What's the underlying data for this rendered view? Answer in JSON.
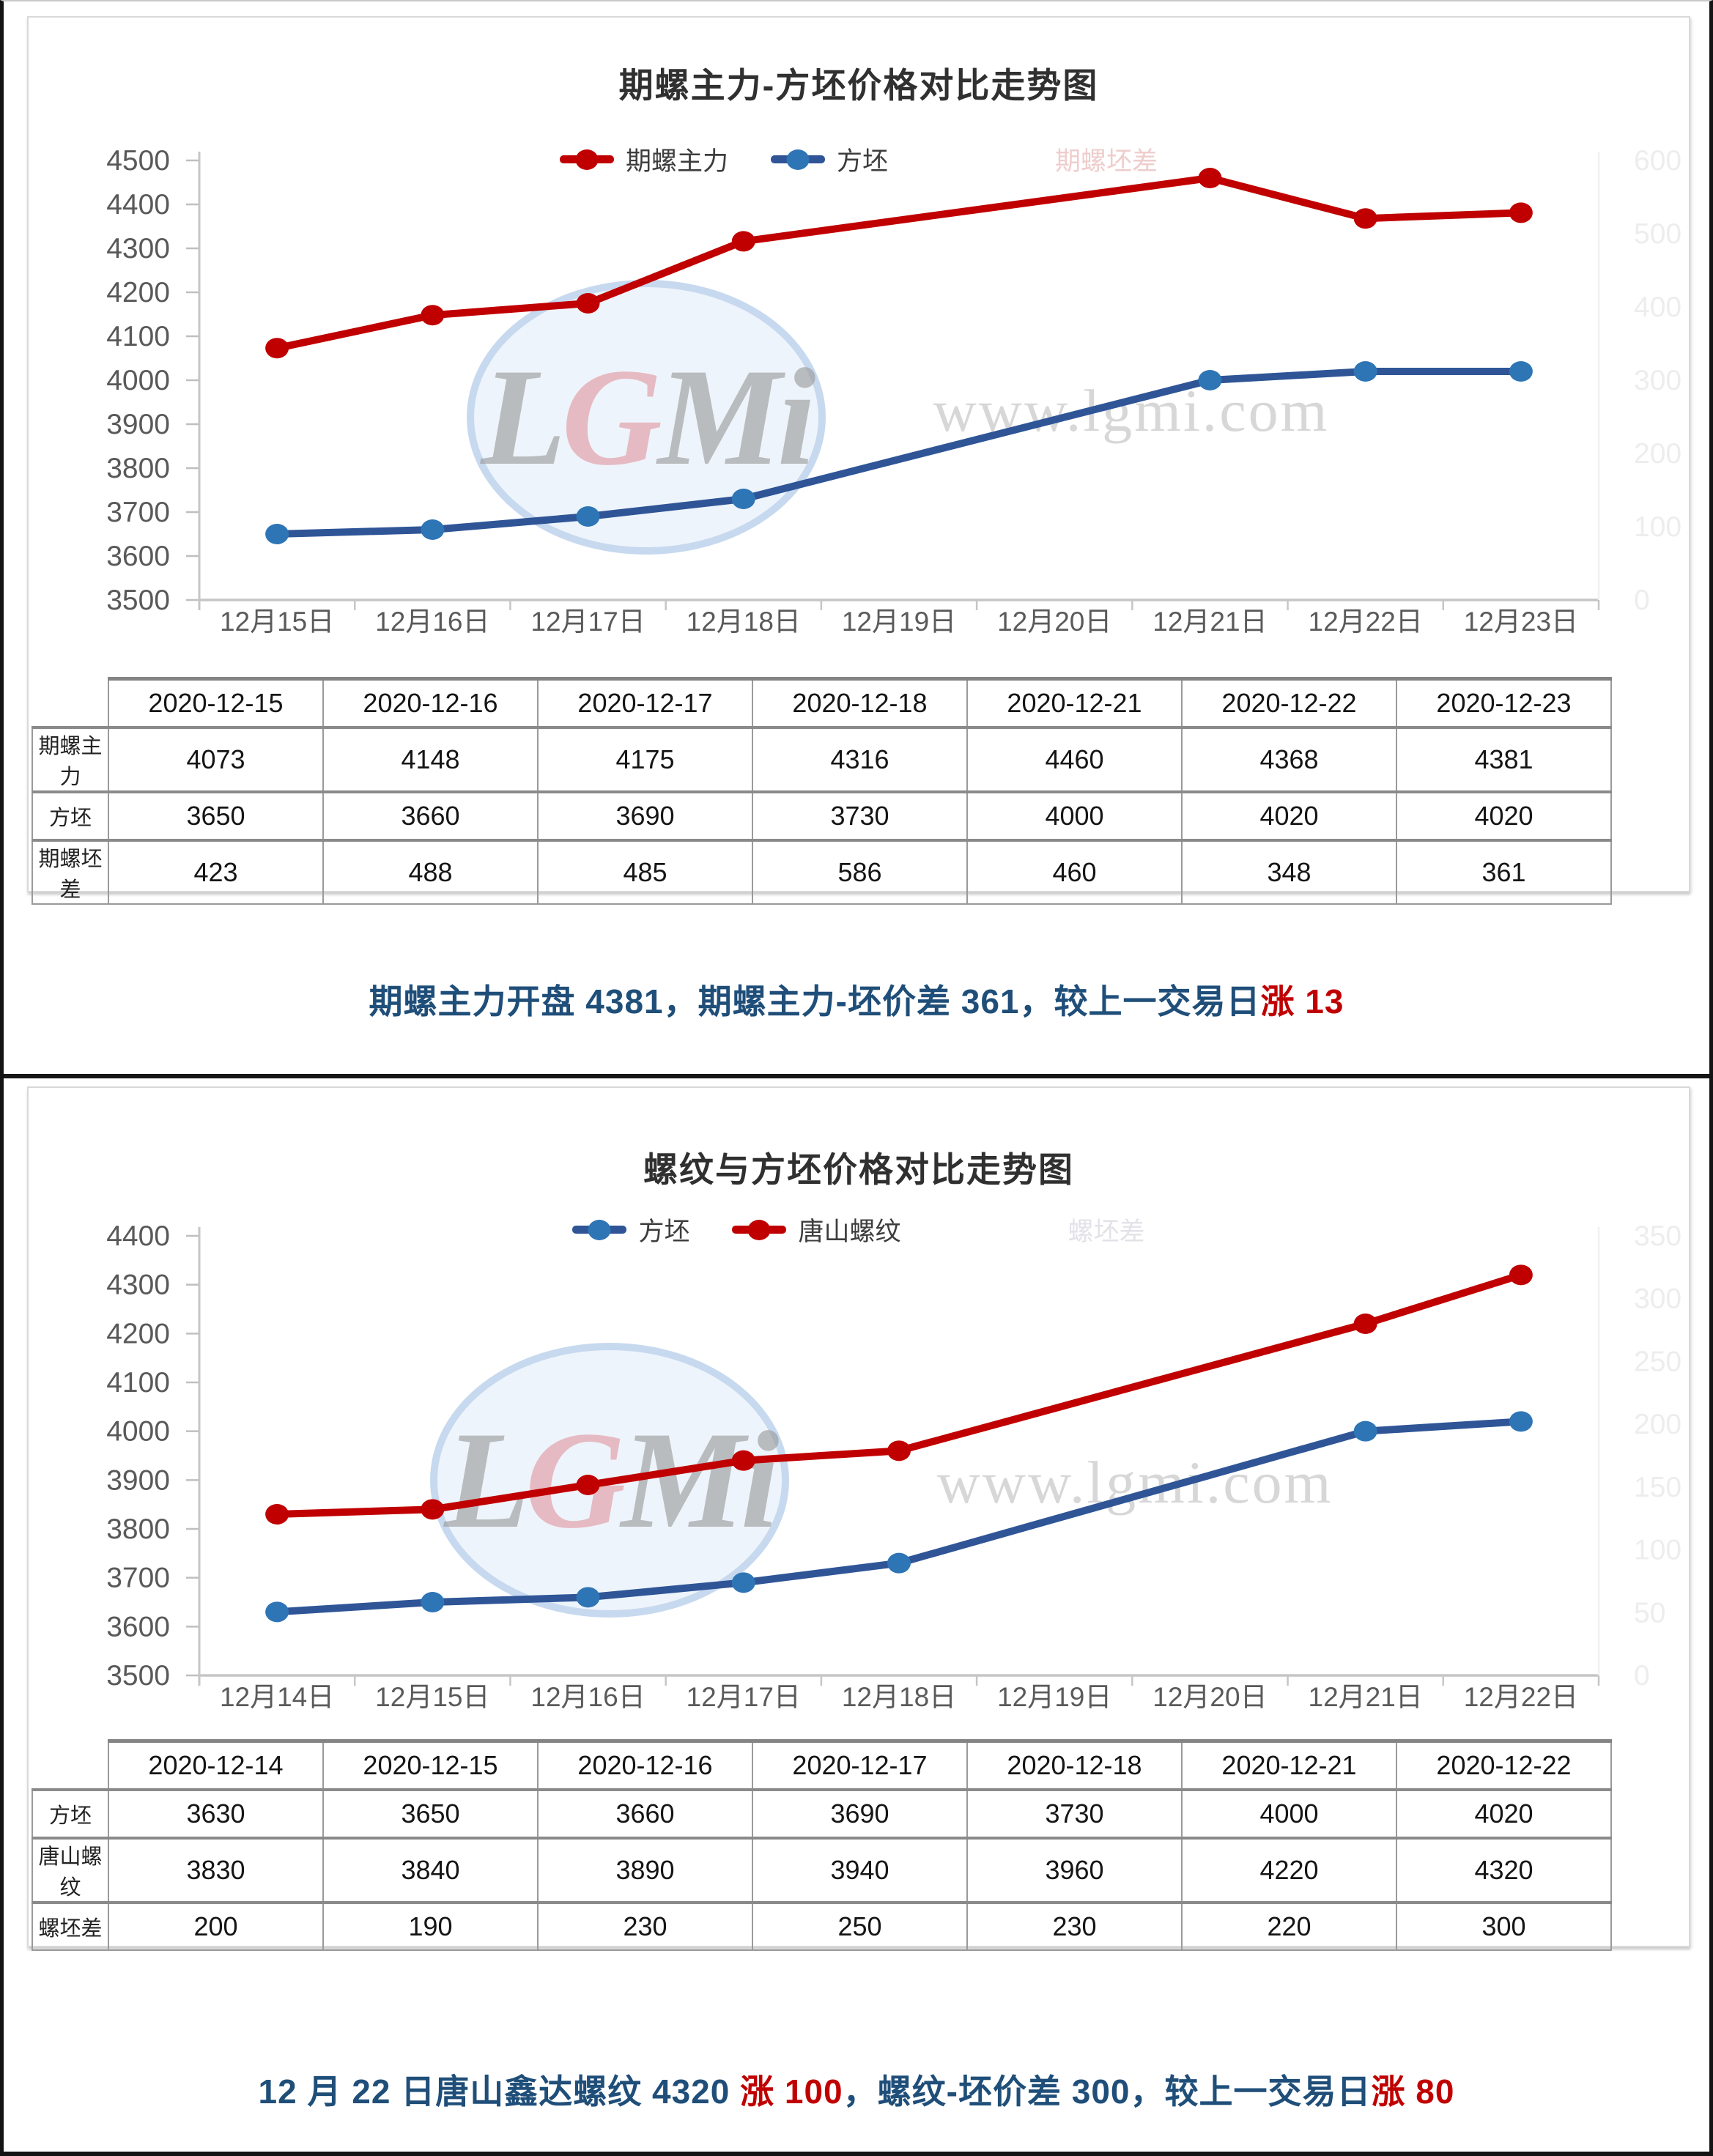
{
  "colors": {
    "series_red": "#C00000",
    "series_blue": "#2F5597",
    "series_blue_marker": "#2E75B6",
    "summary_blue": "#1F4E79",
    "summary_red": "#C00000"
  },
  "watermark": {
    "logo_letters": [
      "L",
      "G",
      "M",
      "i"
    ],
    "url": "www.lgmi.com"
  },
  "chart_data": [
    {
      "type": "line",
      "title": "期螺主力-方坯价格对比走势图",
      "categories": [
        "12月15日",
        "12月16日",
        "12月17日",
        "12月18日",
        "12月19日",
        "12月20日",
        "12月21日",
        "12月22日",
        "12月23日"
      ],
      "series": [
        {
          "name": "期螺主力",
          "color": "#C00000",
          "marker_color": "#C00000",
          "x_idx": [
            0,
            1,
            2,
            3,
            6,
            7,
            8
          ],
          "values": [
            4073,
            4148,
            4175,
            4316,
            4460,
            4368,
            4381
          ]
        },
        {
          "name": "方坯",
          "color": "#2F5597",
          "marker_color": "#2E75B6",
          "x_idx": [
            0,
            1,
            2,
            3,
            6,
            7,
            8
          ],
          "values": [
            3650,
            3660,
            3690,
            3730,
            4000,
            4020,
            4020
          ]
        }
      ],
      "hidden_series_label": "期螺坯差",
      "hidden_series_color": "#efcdcd",
      "ylim": [
        3500,
        4500
      ],
      "ytick": 100,
      "y2lim": [
        0,
        600
      ],
      "y2tick": 100,
      "legend_position": "top",
      "grid": false
    },
    {
      "type": "line",
      "title": "螺纹与方坯价格对比走势图",
      "categories": [
        "12月14日",
        "12月15日",
        "12月16日",
        "12月17日",
        "12月18日",
        "12月19日",
        "12月20日",
        "12月21日",
        "12月22日"
      ],
      "series": [
        {
          "name": "方坯",
          "color": "#2F5597",
          "marker_color": "#2E75B6",
          "x_idx": [
            0,
            1,
            2,
            3,
            4,
            7,
            8
          ],
          "values": [
            3630,
            3650,
            3660,
            3690,
            3730,
            4000,
            4020
          ]
        },
        {
          "name": "唐山螺纹",
          "color": "#C00000",
          "marker_color": "#C00000",
          "x_idx": [
            0,
            1,
            2,
            3,
            4,
            7,
            8
          ],
          "values": [
            3830,
            3840,
            3890,
            3940,
            3960,
            4220,
            4320
          ]
        }
      ],
      "hidden_series_label": "螺坯差",
      "hidden_series_color": "#e2e2e8",
      "ylim": [
        3500,
        4400
      ],
      "ytick": 100,
      "y2lim": [
        0,
        350
      ],
      "y2tick": 50,
      "legend_position": "top",
      "grid": false
    }
  ],
  "tables": [
    {
      "dates": [
        "2020-12-15",
        "2020-12-16",
        "2020-12-17",
        "2020-12-18",
        "2020-12-21",
        "2020-12-22",
        "2020-12-23"
      ],
      "rows": [
        {
          "label": "期螺主力",
          "values": [
            "4073",
            "4148",
            "4175",
            "4316",
            "4460",
            "4368",
            "4381"
          ]
        },
        {
          "label": "方坯",
          "values": [
            "3650",
            "3660",
            "3690",
            "3730",
            "4000",
            "4020",
            "4020"
          ]
        },
        {
          "label": "期螺坯差",
          "values": [
            "423",
            "488",
            "485",
            "586",
            "460",
            "348",
            "361"
          ]
        }
      ]
    },
    {
      "dates": [
        "2020-12-14",
        "2020-12-15",
        "2020-12-16",
        "2020-12-17",
        "2020-12-18",
        "2020-12-21",
        "2020-12-22"
      ],
      "rows": [
        {
          "label": "方坯",
          "values": [
            "3630",
            "3650",
            "3660",
            "3690",
            "3730",
            "4000",
            "4020"
          ]
        },
        {
          "label": "唐山螺纹",
          "values": [
            "3830",
            "3840",
            "3890",
            "3940",
            "3960",
            "4220",
            "4320"
          ]
        },
        {
          "label": "螺坯差",
          "values": [
            "200",
            "190",
            "230",
            "250",
            "230",
            "220",
            "300"
          ]
        }
      ]
    }
  ],
  "summaries": [
    {
      "segments": [
        {
          "text": "期螺主力开盘 4381，期螺主力-坯价差 361，较上一交易日",
          "color": "blue"
        },
        {
          "text": "涨 13",
          "color": "red"
        }
      ]
    },
    {
      "segments": [
        {
          "text": "12 月 22 日唐山鑫达螺纹 4320 ",
          "color": "blue"
        },
        {
          "text": "涨 100",
          "color": "red"
        },
        {
          "text": "，螺纹-坯价差 300，较上一交易日",
          "color": "blue"
        },
        {
          "text": "涨 80",
          "color": "red"
        }
      ]
    }
  ]
}
